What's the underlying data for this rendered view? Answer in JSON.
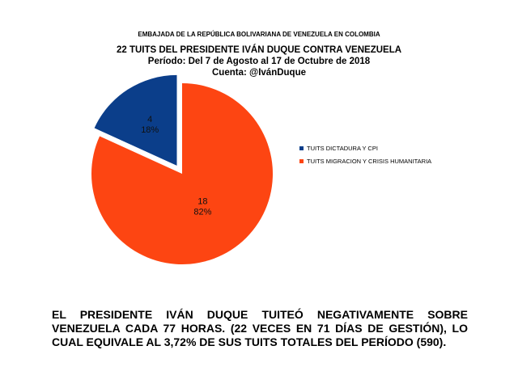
{
  "header": {
    "embassy": "EMBAJADA DE LA REPÚBLICA BOLIVARIANA DE VENEZUELA EN COLOMBIA",
    "title": "22 TUITS DEL PRESIDENTE IVÁN DUQUE CONTRA VENEZUELA",
    "period": "Período: Del 7 de Agosto al 17 de Octubre de 2018",
    "account": "Cuenta: @IvánDuque"
  },
  "chart_data": {
    "type": "pie",
    "title": "22 TUITS DEL PRESIDENTE IVÁN DUQUE CONTRA VENEZUELA",
    "slices": [
      {
        "label": "TUITS DICTADURA Y CPI",
        "value": 4,
        "percent": "18%",
        "color": "#0b3e8a",
        "exploded": true
      },
      {
        "label": "TUITS MIGRACION Y CRISIS HUMANITARIA",
        "value": 18,
        "percent": "82%",
        "color": "#fd4512",
        "exploded": false
      }
    ],
    "legend_position": "right"
  },
  "footer": {
    "text": "EL PRESIDENTE IVÁN DUQUE TUITEÓ NEGATIVAMENTE SOBRE VENEZUELA CADA 77 HORAS. (22 VECES EN 71 DÍAS DE GESTIÓN), LO CUAL EQUIVALE AL 3,72% DE SUS TUITS TOTALES DEL PERÍODO (590)."
  }
}
